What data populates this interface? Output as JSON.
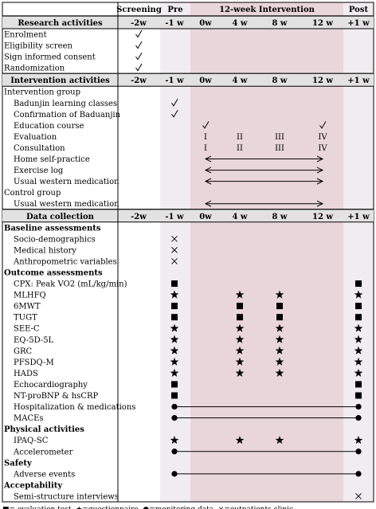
{
  "header": {
    "screening": "Screening",
    "pre": "Pre",
    "intervention": "12-week Intervention",
    "post": "Post"
  },
  "time_points": [
    "-2w",
    "-1 w",
    "0w",
    "4 w",
    "8 w",
    "12 w",
    "+1 w"
  ],
  "sections": [
    {
      "title": "Research activities",
      "rows": [
        {
          "label": "Enrolment",
          "indent": 0,
          "marks": [
            {
              "col": 0,
              "type": "check"
            }
          ]
        },
        {
          "label": "Eligibility screen",
          "indent": 0,
          "marks": [
            {
              "col": 0,
              "type": "check"
            }
          ]
        },
        {
          "label": "Sign informed consent",
          "indent": 0,
          "marks": [
            {
              "col": 0,
              "type": "check"
            }
          ]
        },
        {
          "label": "Randomization",
          "indent": 0,
          "marks": [
            {
              "col": 0,
              "type": "check"
            }
          ]
        }
      ]
    },
    {
      "title": "Intervention activities",
      "rows": [
        {
          "label": "Intervention group",
          "indent": 0,
          "marks": []
        },
        {
          "label": "Badunjin learning classes",
          "indent": 1,
          "marks": [
            {
              "col": 1,
              "type": "check"
            }
          ]
        },
        {
          "label": "Confirmation of Baduanjin",
          "indent": 1,
          "marks": [
            {
              "col": 1,
              "type": "check"
            }
          ]
        },
        {
          "label": "Education course",
          "indent": 1,
          "marks": [
            {
              "col": 2,
              "type": "check"
            },
            {
              "col": 5,
              "type": "check"
            }
          ]
        },
        {
          "label": "Evaluation",
          "indent": 1,
          "marks": [
            {
              "col": 2,
              "type": "text",
              "text": "I"
            },
            {
              "col": 3,
              "type": "text",
              "text": "II"
            },
            {
              "col": 4,
              "type": "text",
              "text": "III"
            },
            {
              "col": 5,
              "type": "text",
              "text": "IV"
            }
          ]
        },
        {
          "label": "Consultation",
          "indent": 1,
          "marks": [
            {
              "col": 2,
              "type": "text",
              "text": "I"
            },
            {
              "col": 3,
              "type": "text",
              "text": "II"
            },
            {
              "col": 4,
              "type": "text",
              "text": "III"
            },
            {
              "col": 5,
              "type": "text",
              "text": "IV"
            }
          ]
        },
        {
          "label": "Home self-practice",
          "indent": 1,
          "marks": [],
          "span": {
            "from": 2,
            "to": 5,
            "style": "arrow"
          }
        },
        {
          "label": "Exercise log",
          "indent": 1,
          "marks": [],
          "span": {
            "from": 2,
            "to": 5,
            "style": "arrow"
          }
        },
        {
          "label": "Usual  western medication",
          "indent": 1,
          "marks": [],
          "span": {
            "from": 2,
            "to": 5,
            "style": "arrow"
          }
        },
        {
          "label": "Control group",
          "indent": 0,
          "marks": []
        },
        {
          "label": "Usual western medication",
          "indent": 1,
          "marks": [],
          "span": {
            "from": 2,
            "to": 5,
            "style": "arrow"
          }
        }
      ]
    },
    {
      "title": "Data collection",
      "rows": [
        {
          "label": "Baseline assessments",
          "indent": 0,
          "bold": true,
          "marks": []
        },
        {
          "label": "Socio-demographics",
          "indent": 1,
          "marks": [
            {
              "col": 1,
              "type": "cross"
            }
          ]
        },
        {
          "label": "Medical history",
          "indent": 1,
          "marks": [
            {
              "col": 1,
              "type": "cross"
            }
          ]
        },
        {
          "label": "Anthropometric variables",
          "indent": 1,
          "marks": [
            {
              "col": 1,
              "type": "cross"
            }
          ]
        },
        {
          "label": "Outcome assessments",
          "indent": 0,
          "bold": true,
          "marks": []
        },
        {
          "label": "CPX: Peak VO2 (mL/kg/min)",
          "indent": 1,
          "marks": [
            {
              "col": 1,
              "type": "square"
            },
            {
              "col": 6,
              "type": "square"
            }
          ]
        },
        {
          "label": "MLHFQ",
          "indent": 1,
          "marks": [
            {
              "col": 1,
              "type": "star"
            },
            {
              "col": 3,
              "type": "star"
            },
            {
              "col": 4,
              "type": "star"
            },
            {
              "col": 6,
              "type": "star"
            }
          ]
        },
        {
          "label": "6MWT",
          "indent": 1,
          "marks": [
            {
              "col": 1,
              "type": "square"
            },
            {
              "col": 3,
              "type": "square"
            },
            {
              "col": 4,
              "type": "square"
            },
            {
              "col": 6,
              "type": "square"
            }
          ]
        },
        {
          "label": "TUGT",
          "indent": 1,
          "marks": [
            {
              "col": 1,
              "type": "square"
            },
            {
              "col": 3,
              "type": "square"
            },
            {
              "col": 4,
              "type": "square"
            },
            {
              "col": 6,
              "type": "square"
            }
          ]
        },
        {
          "label": "SEE-C",
          "indent": 1,
          "marks": [
            {
              "col": 1,
              "type": "star"
            },
            {
              "col": 3,
              "type": "star"
            },
            {
              "col": 4,
              "type": "star"
            },
            {
              "col": 6,
              "type": "star"
            }
          ]
        },
        {
          "label": "EQ-5D-5L",
          "indent": 1,
          "marks": [
            {
              "col": 1,
              "type": "star"
            },
            {
              "col": 3,
              "type": "star"
            },
            {
              "col": 4,
              "type": "star"
            },
            {
              "col": 6,
              "type": "star"
            }
          ]
        },
        {
          "label": "GRC",
          "indent": 1,
          "marks": [
            {
              "col": 1,
              "type": "star"
            },
            {
              "col": 3,
              "type": "star"
            },
            {
              "col": 4,
              "type": "star"
            },
            {
              "col": 6,
              "type": "star"
            }
          ]
        },
        {
          "label": "PFSDQ-M",
          "indent": 1,
          "marks": [
            {
              "col": 1,
              "type": "star"
            },
            {
              "col": 3,
              "type": "star"
            },
            {
              "col": 4,
              "type": "star"
            },
            {
              "col": 6,
              "type": "star"
            }
          ]
        },
        {
          "label": "HADS",
          "indent": 1,
          "marks": [
            {
              "col": 1,
              "type": "star"
            },
            {
              "col": 3,
              "type": "star"
            },
            {
              "col": 4,
              "type": "star"
            },
            {
              "col": 6,
              "type": "star"
            }
          ]
        },
        {
          "label": "Echocardiography",
          "indent": 1,
          "marks": [
            {
              "col": 1,
              "type": "square"
            },
            {
              "col": 6,
              "type": "square"
            }
          ]
        },
        {
          "label": "NT-proBNP & hsCRP",
          "indent": 1,
          "marks": [
            {
              "col": 1,
              "type": "square"
            },
            {
              "col": 6,
              "type": "square"
            }
          ]
        },
        {
          "label": "Hospitalization & medications",
          "indent": 1,
          "marks": [],
          "span": {
            "from": 1,
            "to": 6,
            "style": "dots"
          }
        },
        {
          "label": "MACEs",
          "indent": 1,
          "marks": [],
          "span": {
            "from": 1,
            "to": 6,
            "style": "dots"
          }
        },
        {
          "label": "Physical activities",
          "indent": 0,
          "bold": true,
          "marks": []
        },
        {
          "label": "IPAQ-SC",
          "indent": 1,
          "marks": [
            {
              "col": 1,
              "type": "star"
            },
            {
              "col": 3,
              "type": "star"
            },
            {
              "col": 4,
              "type": "star"
            },
            {
              "col": 6,
              "type": "star"
            }
          ]
        },
        {
          "label": "Accelerometer",
          "indent": 1,
          "marks": [],
          "span": {
            "from": 1,
            "to": 6,
            "style": "dots"
          }
        },
        {
          "label": "Safety",
          "indent": 0,
          "bold": true,
          "marks": []
        },
        {
          "label": "Adverse events",
          "indent": 1,
          "marks": [],
          "span": {
            "from": 1,
            "to": 6,
            "style": "dots"
          }
        },
        {
          "label": "Acceptability",
          "indent": 0,
          "bold": true,
          "marks": []
        },
        {
          "label": "Semi-structure interviews",
          "indent": 1,
          "marks": [
            {
              "col": 6,
              "type": "cross"
            }
          ]
        }
      ]
    }
  ],
  "legend": "■= evaluation test, ★=questionnaire, ●=monitering data, ×=outpatients clinic",
  "colors": {
    "pre_band": "#f1ecf0",
    "intervention_band": "#e9d6db",
    "post_band": "#f1ecf0",
    "section_header": "#e2e2e2",
    "border": "#000000"
  }
}
